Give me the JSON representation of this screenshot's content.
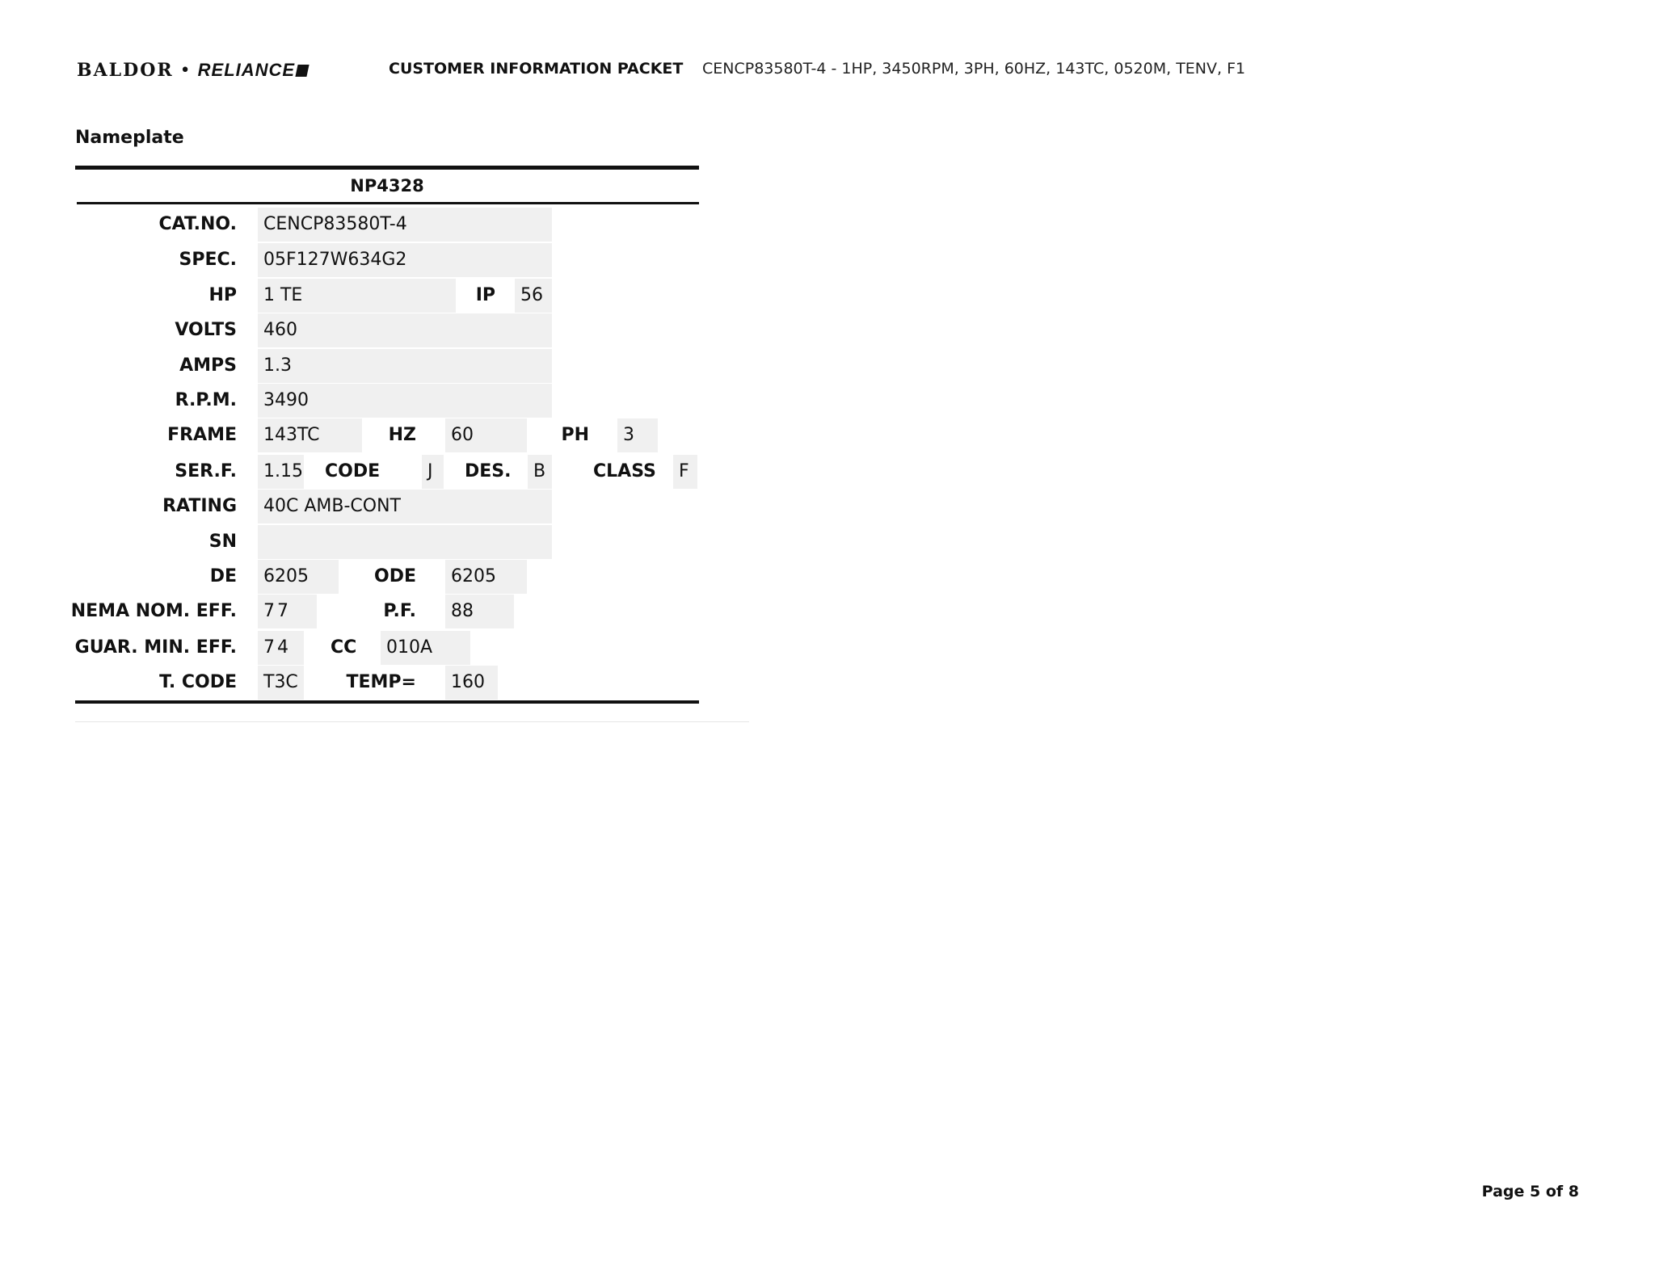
{
  "header": {
    "logo_text": "BALDOR • RELIANCE",
    "logo_part1": "BALDOR",
    "logo_part2": "RELIANCE",
    "title": "CUSTOMER INFORMATION PACKET",
    "description": "CENCP83580T-4 - 1HP, 3450RPM, 3PH, 60HZ, 143TC, 0520M, TENV, F1"
  },
  "section_title": "Nameplate",
  "nameplate": {
    "id": "NP4328",
    "cat_no": {
      "label": "CAT.NO.",
      "value": "CENCP83580T-4"
    },
    "spec": {
      "label": "SPEC.",
      "value": "05F127W634G2"
    },
    "hp": {
      "label": "HP",
      "value": "1 TE"
    },
    "ip": {
      "label": "IP",
      "value": "56"
    },
    "volts": {
      "label": "VOLTS",
      "value": "460"
    },
    "amps": {
      "label": "AMPS",
      "value": "1.3"
    },
    "rpm": {
      "label": "R.P.M.",
      "value": "3490"
    },
    "frame": {
      "label": "FRAME",
      "value": "143TC"
    },
    "hz": {
      "label": "HZ",
      "value": "60"
    },
    "ph": {
      "label": "PH",
      "value": "3"
    },
    "serf": {
      "label": "SER.F.",
      "value": "1.15"
    },
    "code": {
      "label": "CODE",
      "value": "J"
    },
    "des": {
      "label": "DES.",
      "value": "B"
    },
    "class": {
      "label": "CLASS",
      "value": "F"
    },
    "rating": {
      "label": "RATING",
      "value": "40C AMB-CONT"
    },
    "sn": {
      "label": "SN",
      "value": ""
    },
    "de": {
      "label": "DE",
      "value": "6205"
    },
    "ode": {
      "label": "ODE",
      "value": "6205"
    },
    "nema_nom_eff": {
      "label": "NEMA NOM. EFF.",
      "value": "77"
    },
    "pf": {
      "label": "P.F.",
      "value": "88"
    },
    "guar_min_eff": {
      "label": "GUAR. MIN. EFF.",
      "value": "74"
    },
    "cc": {
      "label": "CC",
      "value": "010A"
    },
    "t_code": {
      "label": "T. CODE",
      "value": "T3C"
    },
    "temp": {
      "label": "TEMP=",
      "value": "160"
    }
  },
  "footer": {
    "page": "Page 5 of 8"
  }
}
